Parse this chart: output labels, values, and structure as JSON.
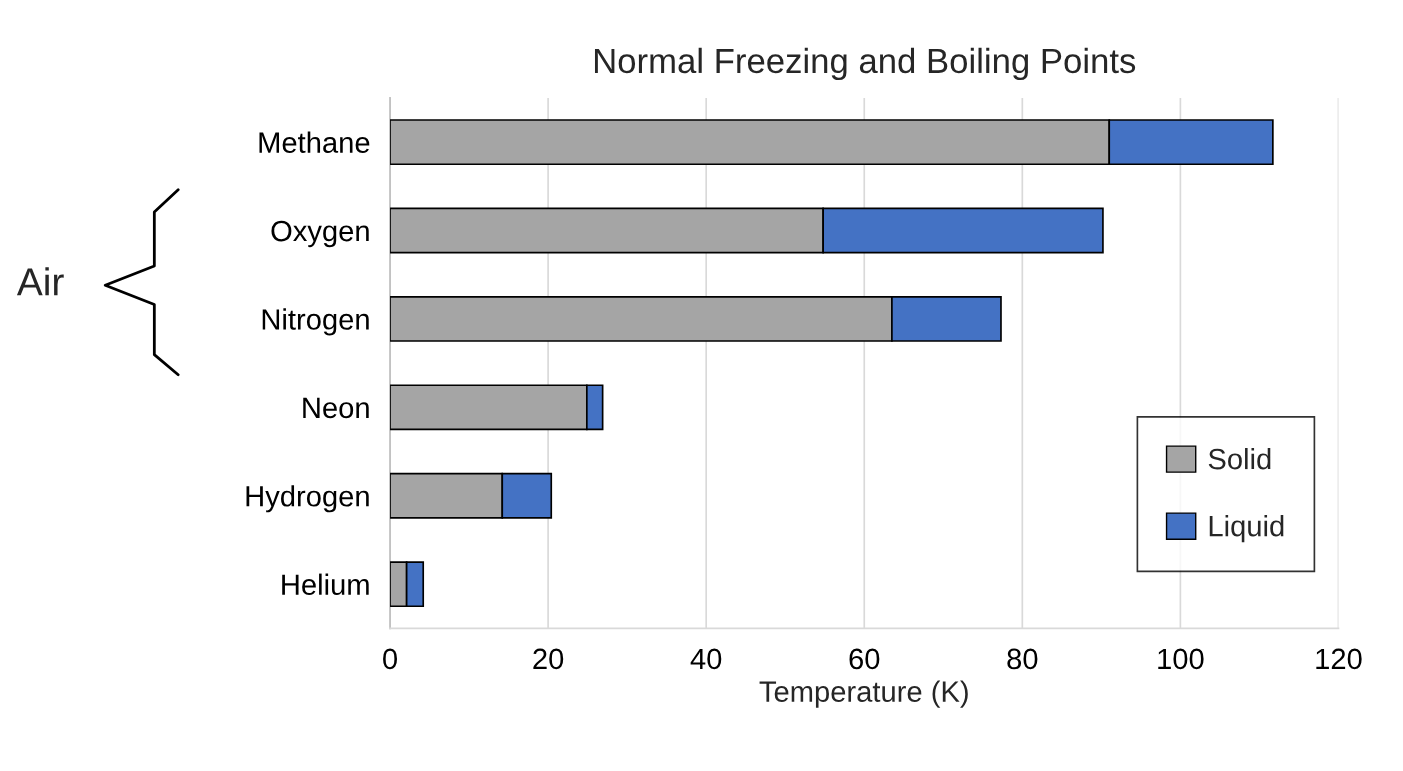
{
  "chart_data": {
    "type": "bar",
    "orientation": "horizontal",
    "stacked": true,
    "title": "Normal Freezing and Boiling Points",
    "xlabel": "Temperature (K)",
    "categories": [
      "Methane",
      "Oxygen",
      "Nitrogen",
      "Neon",
      "Hydrogen",
      "Helium"
    ],
    "series": [
      {
        "name": "Solid",
        "color": "#a5a5a5",
        "values": [
          91.0,
          54.8,
          63.5,
          24.9,
          14.2,
          2.1
        ]
      },
      {
        "name": "Liquid",
        "color": "#4472c4",
        "values": [
          20.7,
          35.4,
          13.8,
          2.0,
          6.2,
          2.1
        ]
      }
    ],
    "xlim": [
      0,
      120
    ],
    "xticks": [
      0,
      20,
      40,
      60,
      80,
      100,
      120
    ],
    "grid": "x",
    "legend": "lower right",
    "annotations": [
      "Air"
    ]
  }
}
